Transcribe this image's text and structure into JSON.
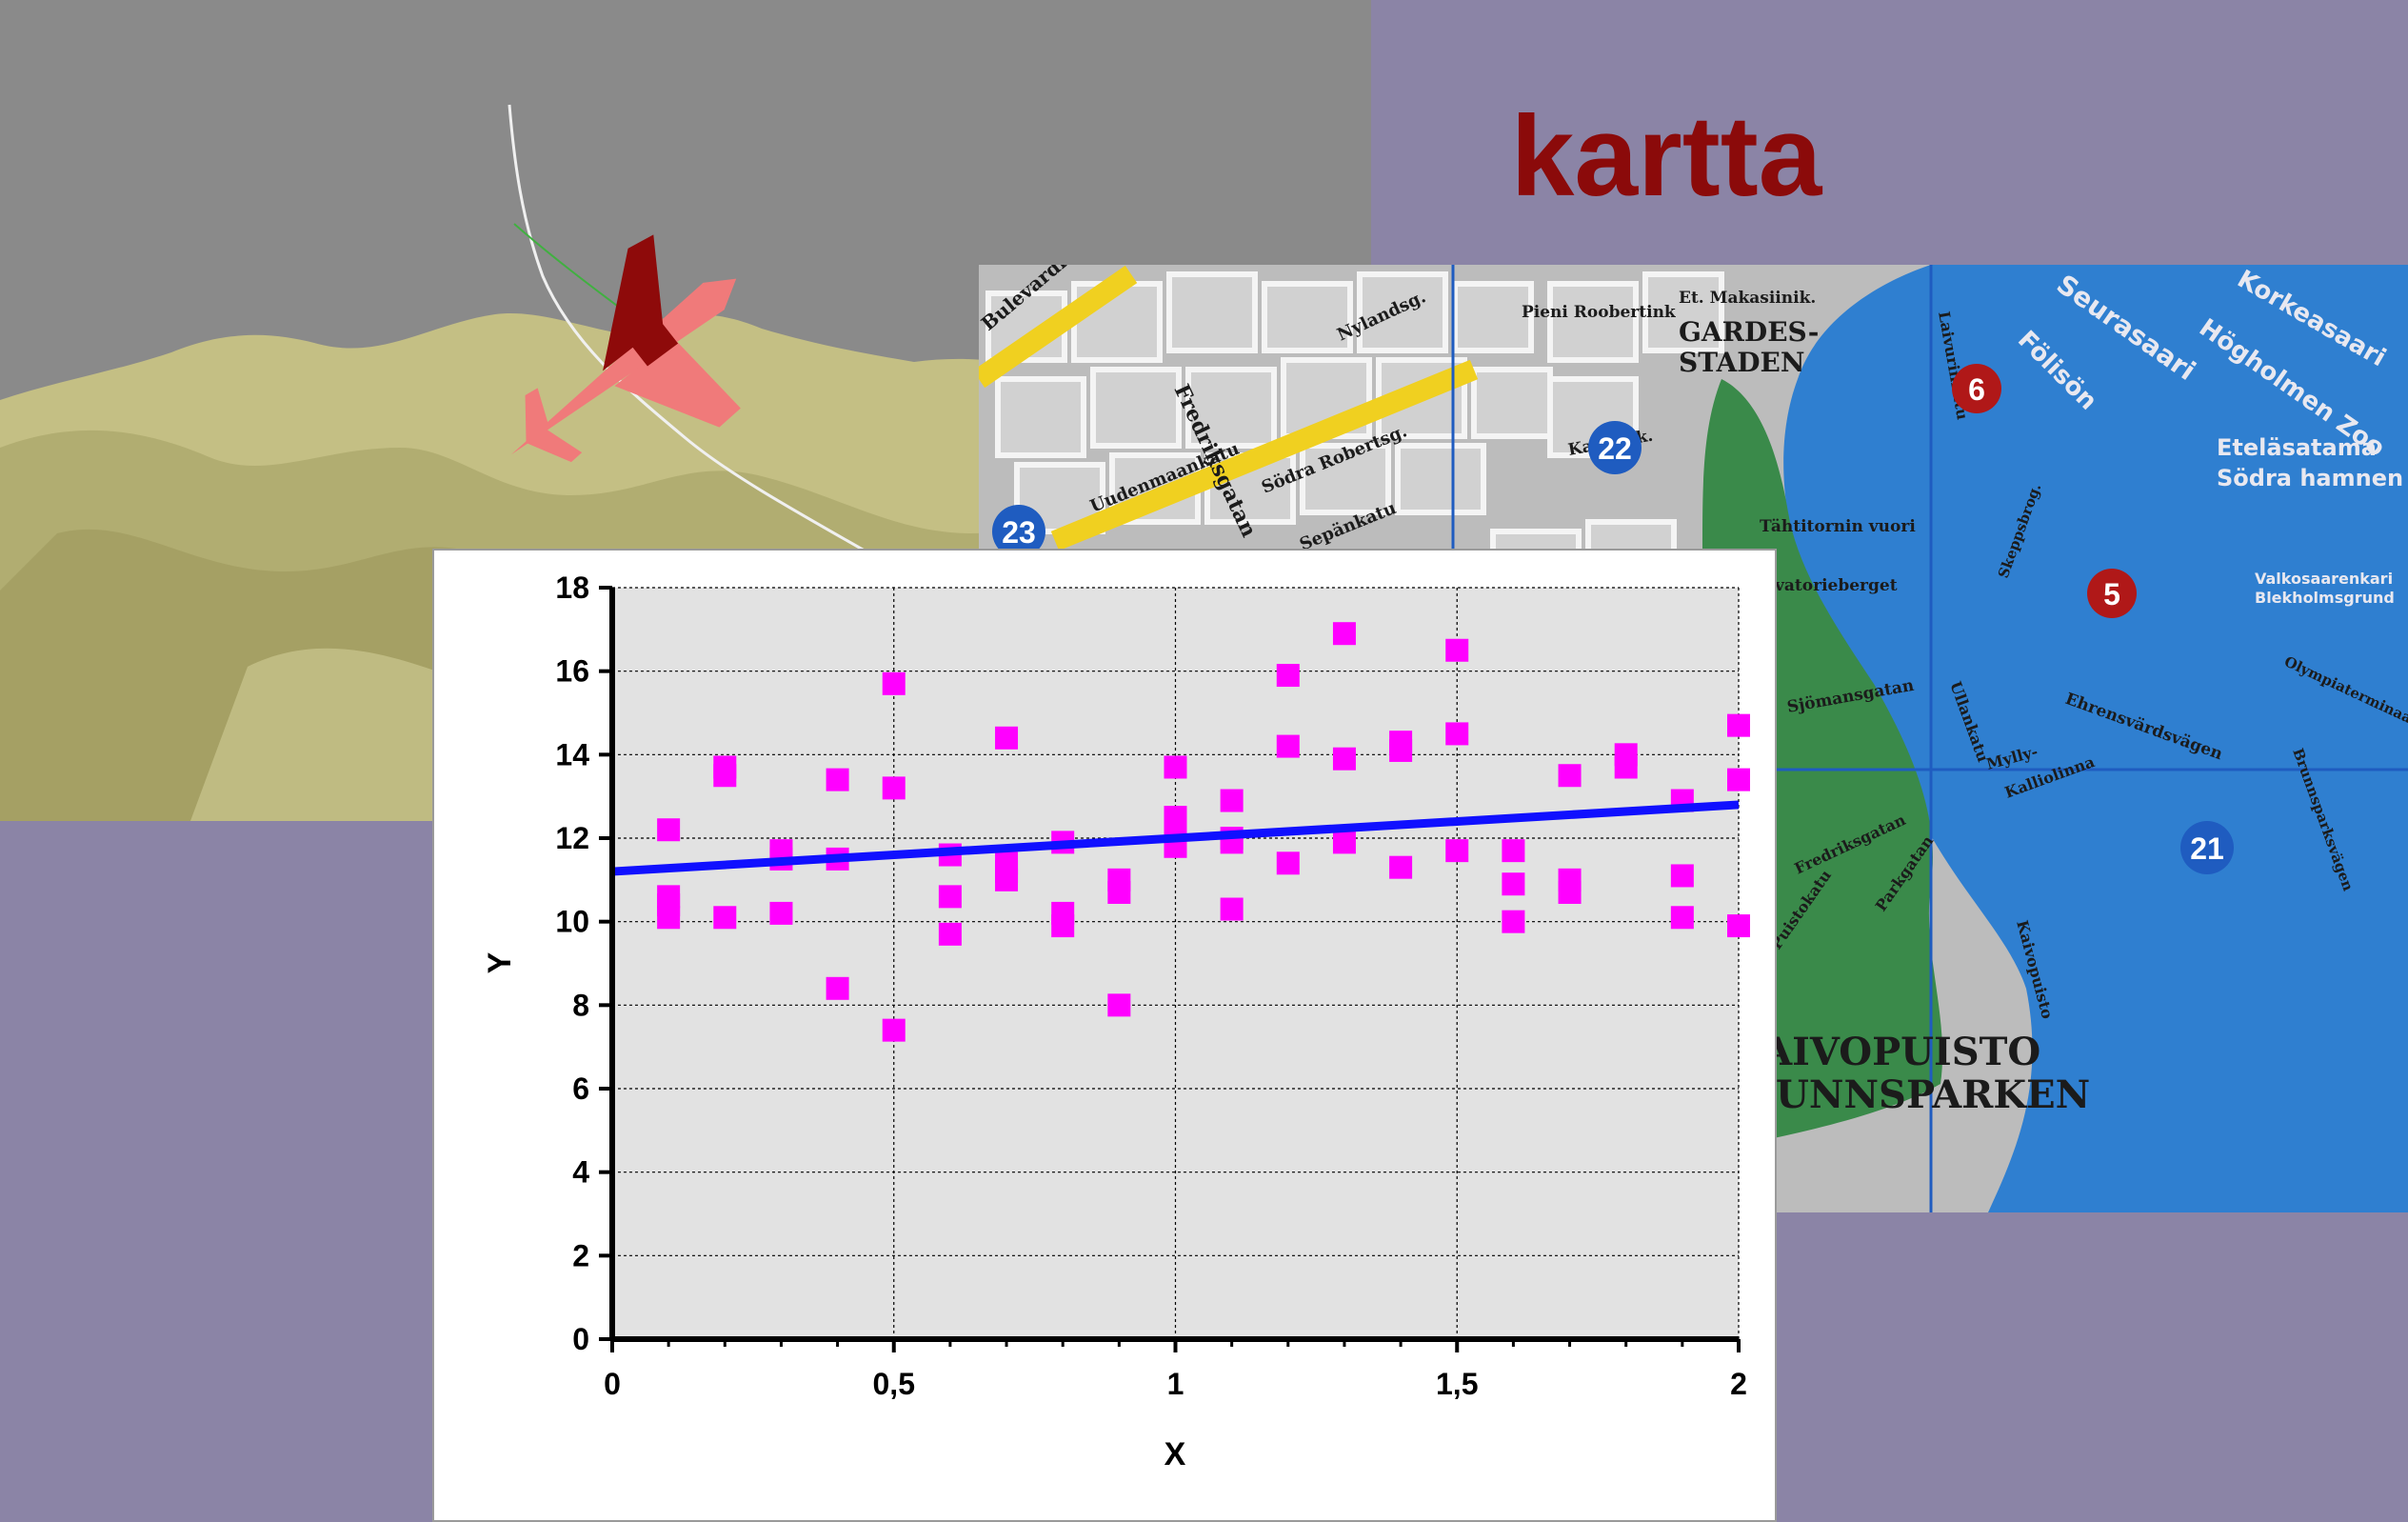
{
  "slide": {
    "title": "kartta",
    "background_color": "#8b84a6",
    "title_color": "#8b0a0a"
  },
  "flight_scene": {
    "terrain_color": "#c4bf84",
    "sky_color": "#8a8a8a",
    "aircraft_color": "#f07a7a"
  },
  "map": {
    "district_labels": [
      "KAIVOPUISTO",
      "BRUNNSPARKEN",
      "GARDES-",
      "STADEN"
    ],
    "street_labels": [
      "Bulevardi",
      "Fredriksgatan",
      "Uudenmaankatu",
      "Södra Robertsg.",
      "Nylandsg.",
      "Sepänkatu",
      "Pieni Roobertink",
      "Et. Makasiinik.",
      "Kaartink.",
      "Tähtitornin vuori",
      "Observatorieberget",
      "Ehrensvärdsvägen",
      "Puistokatu",
      "Parkgatan",
      "Sjömansgatan",
      "Laivurinkatu",
      "Kalliolinna",
      "Mylly-",
      "Ullankatu",
      "Fredriksgatan",
      "Olympiaterminaali",
      "Skeppsbrog.",
      "Kaivopuisto",
      "Brunnsparksvägen"
    ],
    "water_labels": [
      "Seurasaari",
      "Fölisön",
      "Eteläsatama",
      "Södra hamnen",
      "Korkeasaari",
      "Högholmen Zoo",
      "Valkosaarenkari",
      "Blekholmsgrund"
    ],
    "markers": [
      {
        "label": "23",
        "color": "#1f5cc0"
      },
      {
        "label": "22",
        "color": "#1f5cc0"
      },
      {
        "label": "6",
        "color": "#b01818"
      },
      {
        "label": "5",
        "color": "#b01818"
      },
      {
        "label": "21",
        "color": "#1f5cc0"
      }
    ],
    "colors": {
      "water": "#2f7fd0",
      "park": "#3a8a4a",
      "block": "#c9c9c9",
      "main_road": "#f0d020"
    }
  },
  "chart_data": {
    "type": "scatter",
    "title": "",
    "xlabel": "X",
    "ylabel": "Y",
    "xlim": [
      0,
      2
    ],
    "ylim": [
      0,
      18
    ],
    "x_ticks": [
      "0",
      "0,5",
      "1",
      "1,5",
      "2"
    ],
    "y_ticks": [
      "0",
      "2",
      "4",
      "6",
      "8",
      "10",
      "12",
      "14",
      "16",
      "18"
    ],
    "grid": true,
    "legend": "none",
    "plot_background": "#e2e2e2",
    "series": [
      {
        "type": "scatter",
        "color": "#ff00ff",
        "points": [
          [
            0.1,
            12.2
          ],
          [
            0.1,
            10.6
          ],
          [
            0.1,
            10.4
          ],
          [
            0.1,
            10.1
          ],
          [
            0.2,
            13.7
          ],
          [
            0.2,
            13.5
          ],
          [
            0.2,
            10.1
          ],
          [
            0.3,
            11.7
          ],
          [
            0.3,
            11.5
          ],
          [
            0.3,
            10.2
          ],
          [
            0.4,
            13.4
          ],
          [
            0.4,
            11.5
          ],
          [
            0.4,
            8.4
          ],
          [
            0.5,
            15.7
          ],
          [
            0.5,
            13.2
          ],
          [
            0.5,
            7.4
          ],
          [
            0.6,
            11.6
          ],
          [
            0.6,
            10.6
          ],
          [
            0.6,
            9.7
          ],
          [
            0.7,
            14.4
          ],
          [
            0.7,
            11.4
          ],
          [
            0.7,
            11.2
          ],
          [
            0.7,
            11.0
          ],
          [
            0.8,
            11.9
          ],
          [
            0.8,
            10.2
          ],
          [
            0.8,
            9.9
          ],
          [
            0.9,
            11.0
          ],
          [
            0.9,
            10.7
          ],
          [
            0.9,
            8.0
          ],
          [
            1.0,
            13.7
          ],
          [
            1.0,
            12.5
          ],
          [
            1.0,
            12.2
          ],
          [
            1.0,
            11.8
          ],
          [
            1.1,
            12.9
          ],
          [
            1.1,
            12.0
          ],
          [
            1.1,
            11.9
          ],
          [
            1.1,
            10.3
          ],
          [
            1.2,
            15.9
          ],
          [
            1.2,
            14.2
          ],
          [
            1.2,
            11.4
          ],
          [
            1.3,
            16.9
          ],
          [
            1.3,
            13.9
          ],
          [
            1.3,
            11.9
          ],
          [
            1.4,
            14.3
          ],
          [
            1.4,
            14.1
          ],
          [
            1.4,
            11.3
          ],
          [
            1.5,
            16.5
          ],
          [
            1.5,
            14.5
          ],
          [
            1.5,
            11.7
          ],
          [
            1.6,
            11.7
          ],
          [
            1.6,
            10.9
          ],
          [
            1.6,
            10.0
          ],
          [
            1.7,
            13.5
          ],
          [
            1.7,
            11.0
          ],
          [
            1.7,
            10.7
          ],
          [
            1.8,
            14.0
          ],
          [
            1.8,
            13.7
          ],
          [
            1.9,
            12.9
          ],
          [
            1.9,
            11.1
          ],
          [
            1.9,
            10.1
          ],
          [
            2.0,
            14.7
          ],
          [
            2.0,
            13.4
          ],
          [
            2.0,
            9.9
          ]
        ]
      },
      {
        "type": "line",
        "color": "#1010ff",
        "x": [
          0,
          2
        ],
        "y": [
          11.2,
          12.8
        ]
      }
    ]
  }
}
